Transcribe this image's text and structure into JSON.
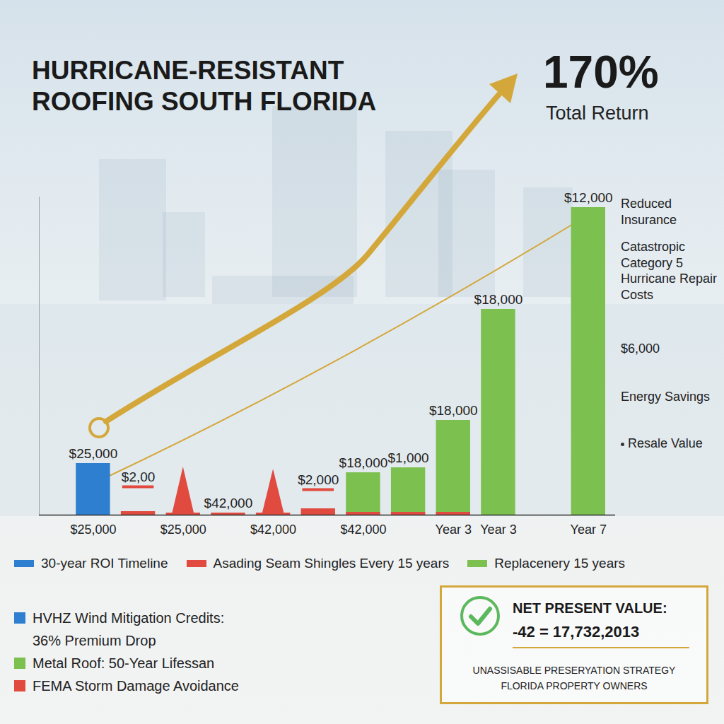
{
  "chart_data": {
    "type": "bar",
    "title": "HURRICANE-RESISTANT ROOFING SOUTH FLORIDA",
    "headline": "170%",
    "headline_caption": "Total Return",
    "categories": [
      "$25,000",
      null,
      "$25,000",
      null,
      "$42,000",
      null,
      "$42,000",
      null,
      "Year 3",
      "Year 3",
      null,
      "Year 7"
    ],
    "series": [
      {
        "name": "30-year ROI Timeline",
        "color": "#2f7fd0",
        "values": [
          73,
          null,
          null,
          null,
          null,
          null,
          null,
          null,
          null,
          null,
          null,
          null
        ]
      },
      {
        "name": "Asading Seam Shingles Every 15 years",
        "color": "#e04a3f",
        "values": [
          null,
          5,
          3,
          3,
          3,
          9,
          4,
          4,
          4,
          null,
          null,
          null
        ],
        "spike_values": [
          null,
          null,
          68,
          null,
          65,
          null,
          null,
          null,
          null,
          null,
          null,
          null
        ],
        "marker_values": [
          null,
          40,
          null,
          null,
          null,
          36,
          null,
          null,
          null,
          null,
          null,
          null
        ]
      },
      {
        "name": "Replacenery 15 years",
        "color": "#7cc04f",
        "values": [
          null,
          null,
          null,
          null,
          null,
          null,
          60,
          67,
          134,
          291,
          null,
          435
        ]
      }
    ],
    "bar_texts": [
      "$25,000",
      "$2,00",
      null,
      "$42,000",
      null,
      "$2,000",
      "$18,000",
      "$1,000",
      "$18,000",
      "$18,000",
      null,
      "$12,000"
    ],
    "ylim": [
      0,
      450
    ],
    "yticks": [],
    "tick_labels": "x",
    "legend": "bottom",
    "side_labels": [
      "Reduced Insurance",
      "Catastropic Category 5 Hurricane Repair Costs",
      "$6,000",
      "Energy Savings",
      "Resale Value"
    ],
    "key_points": [
      {
        "text": "HVHZ Wind Mitigation Credits:",
        "subtext": "36% Premium Drop",
        "color": "#2f7fd0"
      },
      {
        "text": "Metal Roof: 50-Year Lifessan",
        "color": "#7cc04f"
      },
      {
        "text": "FEMA Storm Damage Avoidance",
        "color": "#e04a3f"
      }
    ],
    "npv_box": {
      "heading": "NET PRESENT VALUE:",
      "text": "-42 = 17,732,2013",
      "caption": "UNASSISABLE PRESERYATION STRATEGY FLORIDA PROPERTY OWNERS"
    }
  }
}
